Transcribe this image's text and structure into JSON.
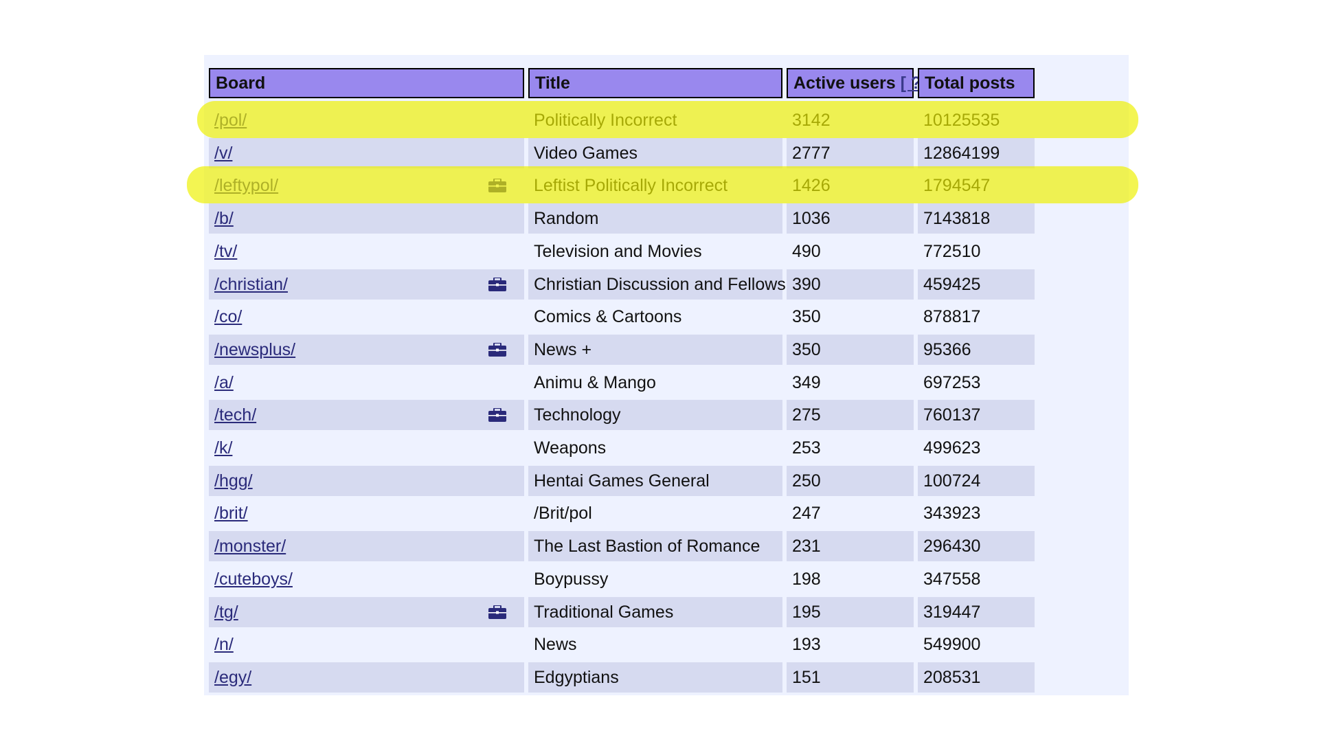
{
  "table": {
    "headers": {
      "board": "Board",
      "title": "Title",
      "active_users": "Active users",
      "active_users_help": "[ ? ]",
      "total_posts": "Total posts"
    },
    "rows": [
      {
        "board": "/pol/",
        "title": "Politically Incorrect",
        "active_users": "3142",
        "total_posts": "10125535",
        "sfw": false,
        "highlighted": true
      },
      {
        "board": "/v/",
        "title": "Video Games",
        "active_users": "2777",
        "total_posts": "12864199",
        "sfw": false,
        "highlighted": false
      },
      {
        "board": "/leftypol/",
        "title": "Leftist Politically Incorrect",
        "active_users": "1426",
        "total_posts": "1794547",
        "sfw": true,
        "highlighted": true
      },
      {
        "board": "/b/",
        "title": "Random",
        "active_users": "1036",
        "total_posts": "7143818",
        "sfw": false,
        "highlighted": false
      },
      {
        "board": "/tv/",
        "title": "Television and Movies",
        "active_users": "490",
        "total_posts": "772510",
        "sfw": false,
        "highlighted": false
      },
      {
        "board": "/christian/",
        "title": "Christian Discussion and Fellowship",
        "active_users": "390",
        "total_posts": "459425",
        "sfw": true,
        "highlighted": false
      },
      {
        "board": "/co/",
        "title": "Comics & Cartoons",
        "active_users": "350",
        "total_posts": "878817",
        "sfw": false,
        "highlighted": false
      },
      {
        "board": "/newsplus/",
        "title": "News +",
        "active_users": "350",
        "total_posts": "95366",
        "sfw": true,
        "highlighted": false
      },
      {
        "board": "/a/",
        "title": "Animu & Mango",
        "active_users": "349",
        "total_posts": "697253",
        "sfw": false,
        "highlighted": false
      },
      {
        "board": "/tech/",
        "title": "Technology",
        "active_users": "275",
        "total_posts": "760137",
        "sfw": true,
        "highlighted": false
      },
      {
        "board": "/k/",
        "title": "Weapons",
        "active_users": "253",
        "total_posts": "499623",
        "sfw": false,
        "highlighted": false
      },
      {
        "board": "/hgg/",
        "title": "Hentai Games General",
        "active_users": "250",
        "total_posts": "100724",
        "sfw": false,
        "highlighted": false
      },
      {
        "board": "/brit/",
        "title": "/Brit/pol",
        "active_users": "247",
        "total_posts": "343923",
        "sfw": false,
        "highlighted": false
      },
      {
        "board": "/monster/",
        "title": "The Last Bastion of Romance",
        "active_users": "231",
        "total_posts": "296430",
        "sfw": false,
        "highlighted": false
      },
      {
        "board": "/cuteboys/",
        "title": "Boypussy",
        "active_users": "198",
        "total_posts": "347558",
        "sfw": false,
        "highlighted": false
      },
      {
        "board": "/tg/",
        "title": "Traditional Games",
        "active_users": "195",
        "total_posts": "319447",
        "sfw": true,
        "highlighted": false
      },
      {
        "board": "/n/",
        "title": "News",
        "active_users": "193",
        "total_posts": "549900",
        "sfw": false,
        "highlighted": false
      },
      {
        "board": "/egy/",
        "title": "Edgyptians",
        "active_users": "151",
        "total_posts": "208531",
        "sfw": false,
        "highlighted": false
      }
    ]
  },
  "icons": {
    "sfw": "briefcase-icon"
  },
  "colors": {
    "header_bg": "#9988ee",
    "row_light": "#eef2ff",
    "row_dark": "#d6daf0",
    "link": "#2a2a7a",
    "highlighter": "#eef000",
    "sfw_icon": "#2a2a7a"
  }
}
